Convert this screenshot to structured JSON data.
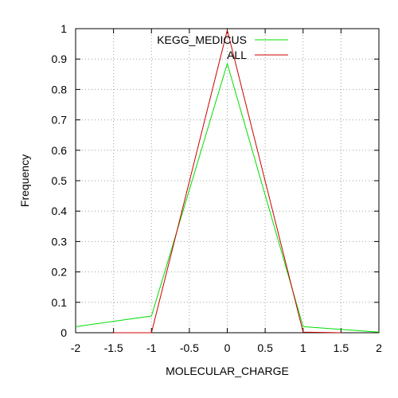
{
  "chart_data": {
    "type": "line",
    "xlabel": "MOLECULAR_CHARGE",
    "ylabel": "Frequency",
    "xlim": [
      -2,
      2
    ],
    "ylim": [
      0,
      1
    ],
    "x_ticks": [
      -2,
      -1.5,
      -1,
      -0.5,
      0,
      0.5,
      1,
      1.5,
      2
    ],
    "y_ticks": [
      0,
      0.1,
      0.2,
      0.3,
      0.4,
      0.5,
      0.6,
      0.7,
      0.8,
      0.9,
      1
    ],
    "x_tick_labels": [
      "-2",
      "-1.5",
      "-1",
      "-0.5",
      "0",
      "0.5",
      "1",
      "1.5",
      "2"
    ],
    "y_tick_labels": [
      "0",
      "0.1",
      "0.2",
      "0.3",
      "0.4",
      "0.5",
      "0.6",
      "0.7",
      "0.8",
      "0.9",
      "1"
    ],
    "grid": true,
    "legend_position": "top-center",
    "series": [
      {
        "name": "KEGG_MEDICUS",
        "color": "#00dd00",
        "points": [
          [
            -2,
            0.02
          ],
          [
            -1,
            0.055
          ],
          [
            0,
            0.885
          ],
          [
            1,
            0.02
          ],
          [
            2,
            0.002
          ]
        ]
      },
      {
        "name": "ALL",
        "color": "#cc0000",
        "points": [
          [
            -1.5,
            0.0
          ],
          [
            -1,
            0.0
          ],
          [
            0,
            0.995
          ],
          [
            1,
            0.002
          ],
          [
            1.5,
            0.0
          ]
        ]
      }
    ]
  }
}
